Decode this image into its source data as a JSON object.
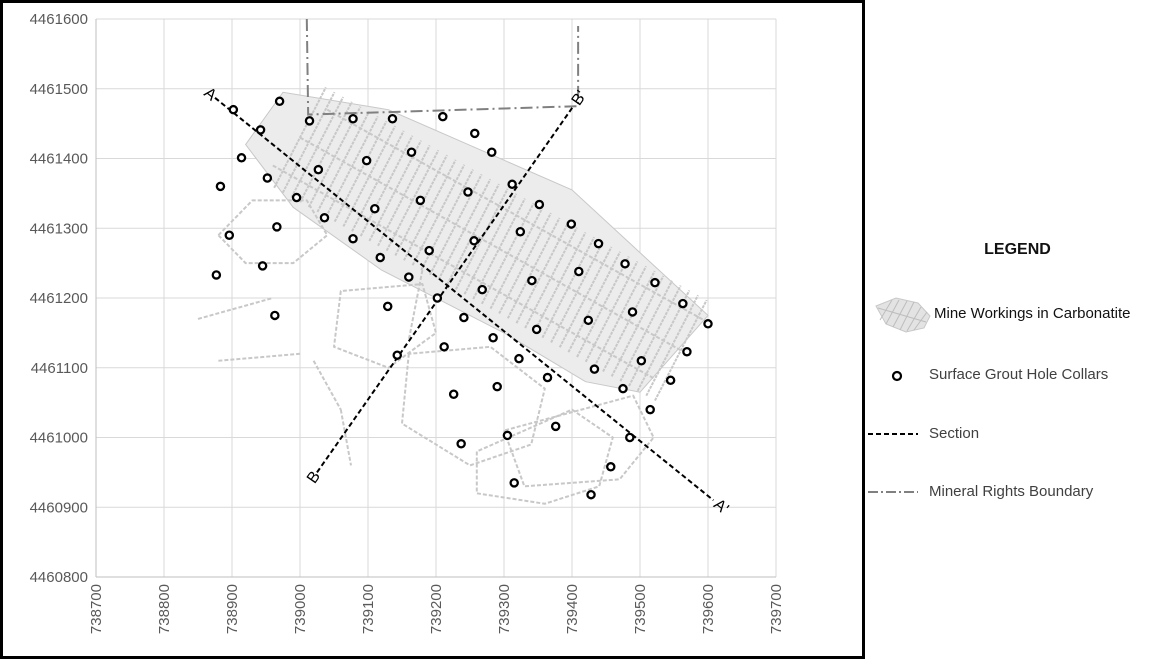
{
  "chart_data": {
    "type": "scatter",
    "title": "",
    "xlabel": "",
    "ylabel": "",
    "xlim": [
      738700,
      739700
    ],
    "ylim": [
      4460800,
      4461600
    ],
    "x_ticks": [
      "738700",
      "738800",
      "738900",
      "739000",
      "739100",
      "739200",
      "739300",
      "739400",
      "739500",
      "739600",
      "739700"
    ],
    "y_ticks": [
      "4460800",
      "4460900",
      "4461000",
      "4461100",
      "4461200",
      "4461300",
      "4461400",
      "4461500",
      "4461600"
    ],
    "grid": true,
    "legend_placement": "right",
    "series": [
      {
        "name": "Surface Grout Hole Collars",
        "points": [
          [
            738902,
            4461470
          ],
          [
            738970,
            4461482
          ],
          [
            738942,
            4461441
          ],
          [
            739014,
            4461454
          ],
          [
            739078,
            4461457
          ],
          [
            739136,
            4461457
          ],
          [
            739210,
            4461460
          ],
          [
            739257,
            4461436
          ],
          [
            739282,
            4461409
          ],
          [
            738914,
            4461401
          ],
          [
            739098,
            4461397
          ],
          [
            739164,
            4461409
          ],
          [
            739027,
            4461384
          ],
          [
            738883,
            4461360
          ],
          [
            738952,
            4461372
          ],
          [
            738995,
            4461344
          ],
          [
            739247,
            4461352
          ],
          [
            739312,
            4461363
          ],
          [
            739110,
            4461328
          ],
          [
            739177,
            4461340
          ],
          [
            739352,
            4461334
          ],
          [
            739036,
            4461315
          ],
          [
            738966,
            4461302
          ],
          [
            739399,
            4461306
          ],
          [
            738896,
            4461290
          ],
          [
            739324,
            4461295
          ],
          [
            739078,
            4461285
          ],
          [
            739256,
            4461282
          ],
          [
            739439,
            4461278
          ],
          [
            739190,
            4461268
          ],
          [
            739118,
            4461258
          ],
          [
            738945,
            4461246
          ],
          [
            739478,
            4461249
          ],
          [
            738877,
            4461233
          ],
          [
            739160,
            4461230
          ],
          [
            739410,
            4461238
          ],
          [
            739341,
            4461225
          ],
          [
            739522,
            4461222
          ],
          [
            739268,
            4461212
          ],
          [
            739202,
            4461200
          ],
          [
            739129,
            4461188
          ],
          [
            739563,
            4461192
          ],
          [
            738963,
            4461175
          ],
          [
            739241,
            4461172
          ],
          [
            739489,
            4461180
          ],
          [
            739424,
            4461168
          ],
          [
            739600,
            4461163
          ],
          [
            739348,
            4461155
          ],
          [
            739284,
            4461143
          ],
          [
            739212,
            4461130
          ],
          [
            739569,
            4461123
          ],
          [
            739143,
            4461118
          ],
          [
            739322,
            4461113
          ],
          [
            739502,
            4461110
          ],
          [
            739433,
            4461098
          ],
          [
            739364,
            4461086
          ],
          [
            739545,
            4461082
          ],
          [
            739290,
            4461073
          ],
          [
            739475,
            4461070
          ],
          [
            739226,
            4461062
          ],
          [
            739515,
            4461040
          ],
          [
            739376,
            4461016
          ],
          [
            739305,
            4461003
          ],
          [
            739485,
            4461000
          ],
          [
            739237,
            4460991
          ],
          [
            739457,
            4460958
          ],
          [
            739315,
            4460935
          ],
          [
            739428,
            4460918
          ]
        ]
      }
    ],
    "sections": [
      {
        "name": "A",
        "from": [
          738875,
          4461487
        ],
        "to": [
          739608,
          4460910
        ],
        "start_label": "A",
        "end_label": "A'"
      },
      {
        "name": "B",
        "from": [
          739025,
          4460950
        ],
        "to": [
          739402,
          4461475
        ],
        "start_label": "B",
        "end_label": "B'"
      }
    ],
    "mineral_rights_boundary": [
      [
        739010,
        4461600
      ],
      [
        739012,
        4461463
      ],
      [
        739409,
        4461475
      ],
      [
        739409,
        4461590
      ]
    ],
    "legend": {
      "title": "LEGEND",
      "entries": [
        {
          "label": "Mine Workings in Carbonatite",
          "symbol": "hatched-area"
        },
        {
          "label": "Surface Grout Hole Collars",
          "symbol": "open-circle"
        },
        {
          "label": "Section",
          "symbol": "dashed-line"
        },
        {
          "label": "Mineral Rights Boundary",
          "symbol": "dash-dot-line"
        }
      ]
    },
    "colors": {
      "collar": "#000000",
      "section": "#000000",
      "boundary": "#808080",
      "workings": "#c8c8c8",
      "grid": "#d9d9d9",
      "tick_text": "#595959"
    }
  }
}
